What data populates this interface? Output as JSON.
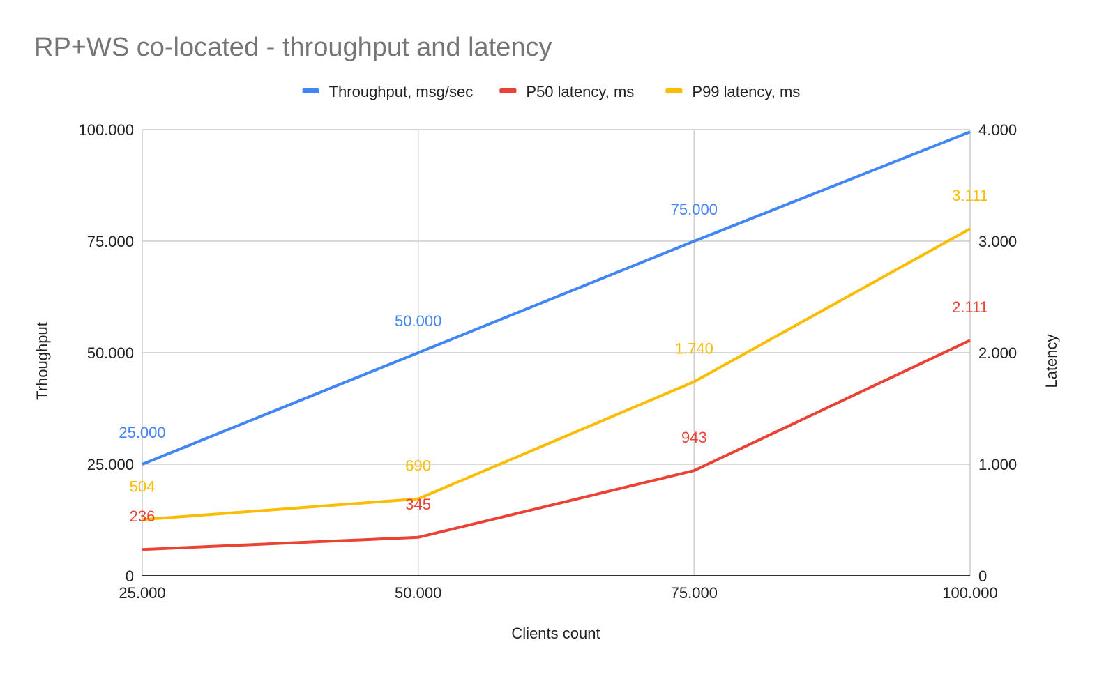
{
  "chart_data": {
    "type": "line",
    "title": "RP+WS co-located - throughput and latency",
    "xlabel": "Clients count",
    "ylabel_left": "Trhoughput",
    "ylabel_right": "Latency",
    "x": [
      25000,
      50000,
      75000,
      100000
    ],
    "x_tick_labels": [
      "25.000",
      "50.000",
      "75.000",
      "100.000"
    ],
    "xlim": [
      25000,
      100000
    ],
    "ylim_left": [
      0,
      100000
    ],
    "ylim_right": [
      0,
      4000
    ],
    "y_ticks_left": [
      "0",
      "25.000",
      "50.000",
      "75.000",
      "100.000"
    ],
    "y_ticks_right": [
      "0",
      "1.000",
      "2.000",
      "3.000",
      "4.000"
    ],
    "grid": true,
    "legend_position": "top",
    "series": [
      {
        "name": "Throughput, msg/sec",
        "axis": "left",
        "color": "#4285f4",
        "values": [
          25000,
          50000,
          75000,
          99500
        ],
        "data_labels": [
          "25.000",
          "50.000",
          "75.000",
          ""
        ]
      },
      {
        "name": "P50 latency, ms",
        "axis": "right",
        "color": "#ea4335",
        "values": [
          236,
          345,
          943,
          2111
        ],
        "data_labels": [
          "236",
          "345",
          "943",
          "2.111"
        ]
      },
      {
        "name": "P99 latency, ms",
        "axis": "right",
        "color": "#fbbc04",
        "values": [
          504,
          690,
          1740,
          3111
        ],
        "data_labels": [
          "504",
          "690",
          "1.740",
          "3.111"
        ]
      }
    ]
  }
}
